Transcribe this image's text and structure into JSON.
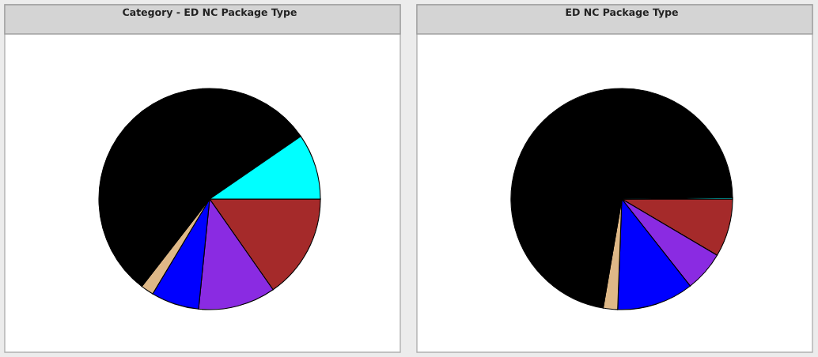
{
  "chart_data": [
    {
      "type": "pie",
      "title": "Category - ED NC Package Type",
      "categories": [
        null,
        null,
        null,
        null,
        null,
        null
      ],
      "values": [
        15.3,
        11.3,
        7.0,
        1.9,
        54.9,
        9.6
      ],
      "colors": [
        "#a52a2a",
        "#8a2be2",
        "#0000ff",
        "#deb887",
        "#000000",
        "#00ffff"
      ]
    },
    {
      "type": "pie",
      "title": "ED NC Package Type",
      "categories": [
        null,
        null,
        null,
        null,
        null,
        null
      ],
      "values": [
        8.5,
        5.9,
        11.2,
        2.1,
        72.1,
        0.2
      ],
      "colors": [
        "#a52a2a",
        "#8a2be2",
        "#0000ff",
        "#deb887",
        "#000000",
        "#00ffff"
      ]
    }
  ]
}
